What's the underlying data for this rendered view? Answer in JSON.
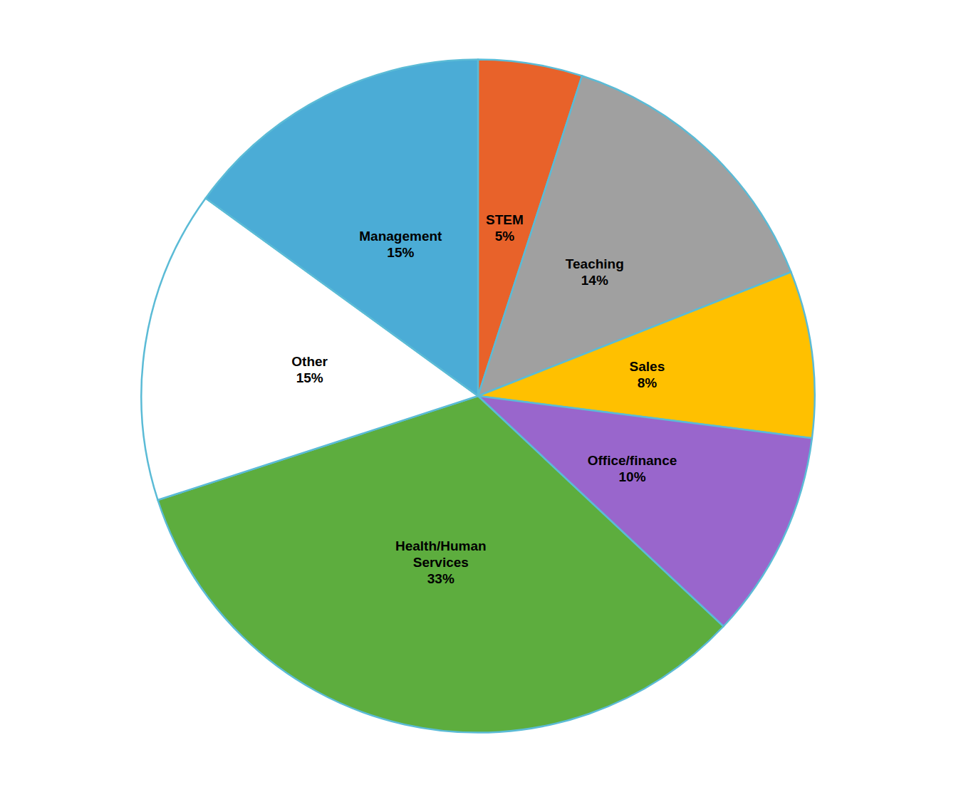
{
  "chart_data": {
    "type": "pie",
    "categories": [
      "STEM\n5%",
      "Teaching\n14%",
      "Sales\n8%",
      "Office/finance\n10%",
      "Health/Human\nServices\n33%",
      "Other\n15%",
      "Management\n15%"
    ],
    "values": [
      5,
      14,
      8,
      10,
      33,
      15,
      15
    ],
    "colors": [
      "#E8622A",
      "#A0A0A0",
      "#FFC000",
      "#9966CC",
      "#5DAD3E",
      "#FFFFFF",
      "#4BACD6"
    ],
    "legend": false
  }
}
